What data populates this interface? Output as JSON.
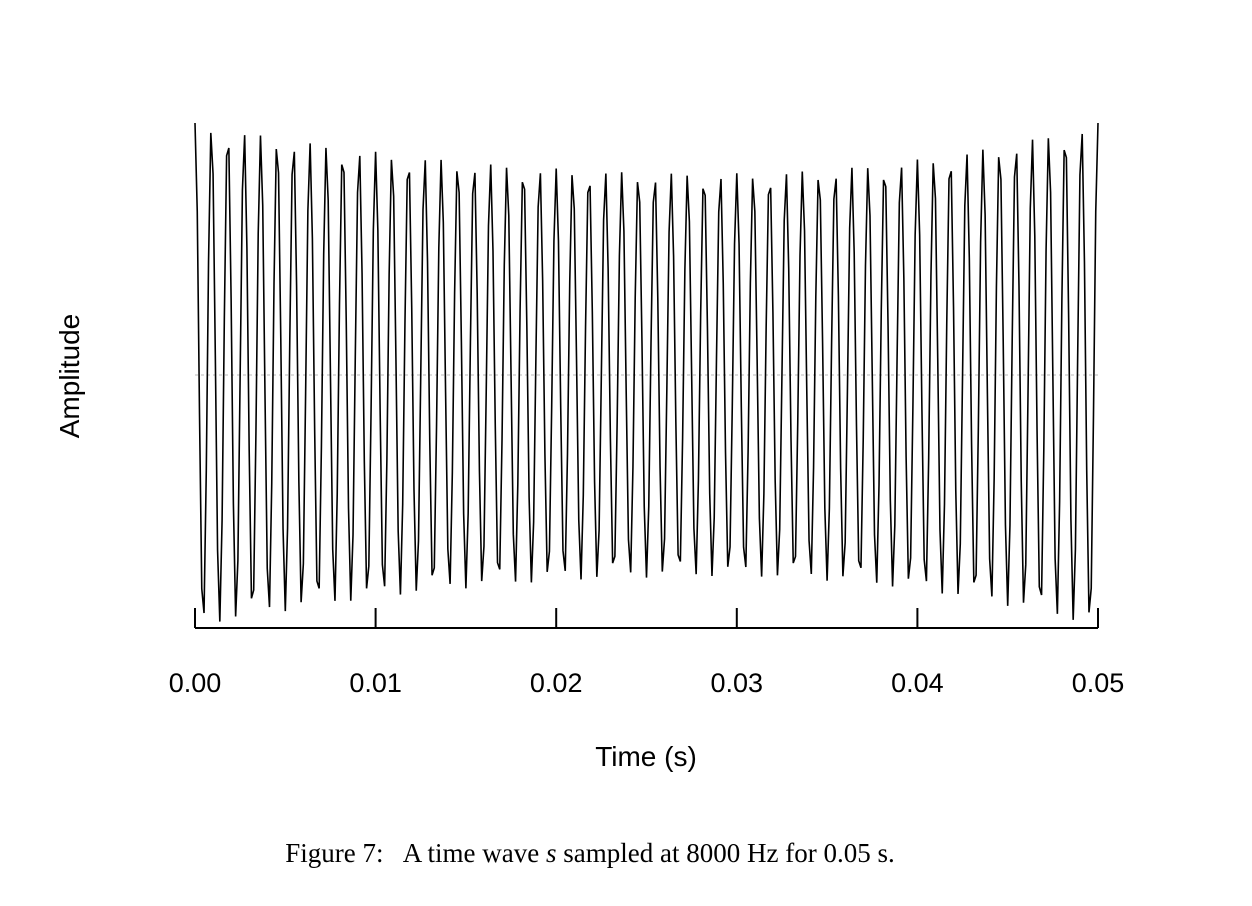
{
  "chart_data": {
    "type": "line",
    "xlabel": "Time (s)",
    "ylabel": "Amplitude",
    "xlim": [
      0.0,
      0.05
    ],
    "x_ticks": [
      "0.00",
      "0.01",
      "0.02",
      "0.03",
      "0.04",
      "0.05"
    ],
    "y_ticks_labeled": false,
    "zero_line": true,
    "grid": false,
    "sample_rate_hz": 8000,
    "duration_s": 0.05,
    "carrier_frequency_hz": 1100,
    "envelope": {
      "min_amplitude_time_s": 0.029,
      "relative_amplitude_at_min": 0.8
    },
    "line_color": "#000000",
    "zero_line_color": "#c8c8c8"
  },
  "caption": {
    "number": "Figure 7:",
    "text_before": "A time wave",
    "symbol": "s",
    "text_after": "sampled at 8000 Hz for 0.05 s."
  }
}
